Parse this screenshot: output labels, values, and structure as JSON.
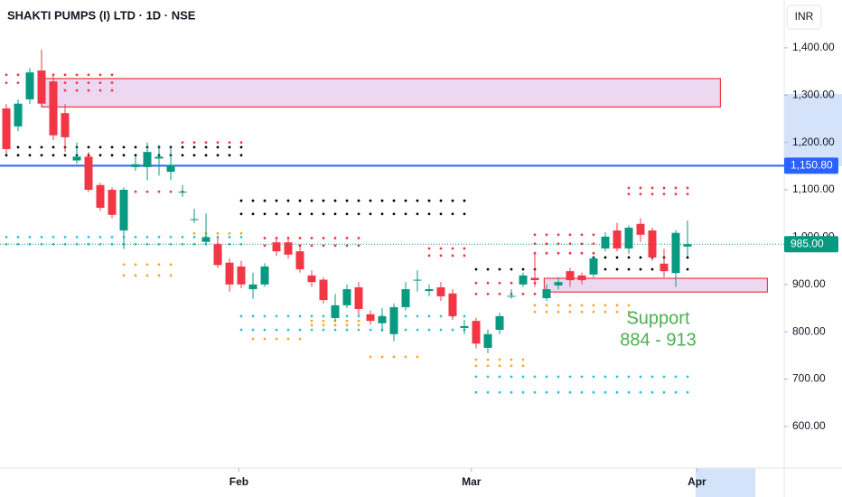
{
  "chart_data": {
    "type": "candlestick",
    "title": "SHAKTI PUMPS (I) LTD · 1D · NSE",
    "currency": "INR",
    "up_color": "#089981",
    "down_color": "#f23645",
    "open": [
      1272,
      1234,
      1291,
      1352,
      1329,
      1262,
      1162,
      1170,
      1110,
      1100,
      1014,
      1148,
      1148,
      1166,
      1138,
      1094,
      1036,
      990,
      985,
      946,
      938,
      890,
      900,
      989,
      989,
      970,
      919,
      910,
      829,
      856,
      894,
      837,
      818,
      795,
      852,
      908,
      886,
      894,
      881,
      808,
      823,
      766,
      804,
      874,
      900,
      914,
      871,
      898,
      928,
      919,
      921,
      976,
      1014,
      976,
      1028,
      1014,
      944,
      924,
      980
    ],
    "high": [
      1281,
      1291,
      1357,
      1396,
      1340,
      1281,
      1200,
      1180,
      1115,
      1105,
      1105,
      1170,
      1200,
      1195,
      1190,
      1110,
      1060,
      1050,
      1000,
      955,
      950,
      925,
      945,
      995,
      995,
      985,
      930,
      915,
      880,
      900,
      905,
      845,
      850,
      860,
      905,
      930,
      900,
      905,
      890,
      825,
      830,
      805,
      840,
      890,
      925,
      965,
      900,
      915,
      935,
      925,
      960,
      1010,
      1030,
      1025,
      1040,
      1020,
      975,
      1015,
      1035
    ],
    "low": [
      1176,
      1224,
      1281,
      1276,
      1205,
      1180,
      1155,
      1095,
      1055,
      1040,
      975,
      1140,
      1120,
      1130,
      1120,
      1085,
      1030,
      985,
      935,
      885,
      892,
      870,
      895,
      960,
      955,
      925,
      895,
      860,
      822,
      850,
      835,
      815,
      800,
      780,
      845,
      885,
      875,
      865,
      825,
      795,
      765,
      755,
      795,
      870,
      895,
      895,
      865,
      890,
      895,
      900,
      915,
      970,
      970,
      965,
      990,
      950,
      915,
      895,
      960
    ],
    "close": [
      1186,
      1282,
      1348,
      1282,
      1215,
      1211,
      1170,
      1100,
      1062,
      1047,
      1100,
      1154,
      1180,
      1170,
      1152,
      1096,
      1038,
      1000,
      941,
      900,
      900,
      900,
      938,
      970,
      963,
      932,
      905,
      867,
      856,
      890,
      848,
      823,
      833,
      852,
      890,
      910,
      890,
      875,
      833,
      812,
      775,
      795,
      833,
      876,
      919,
      909,
      890,
      905,
      909,
      909,
      955,
      1001,
      976,
      1020,
      1005,
      957,
      928,
      1009,
      985
    ],
    "xlim": [
      -0.54,
      66.23
    ],
    "xticks": [
      {
        "value": 19.8,
        "label": "Feb"
      },
      {
        "value": 39.6,
        "label": "Mar"
      },
      {
        "value": 58.8,
        "label": "Apr"
      }
    ],
    "ylim": [
      512,
      1501
    ],
    "yticks": [
      {
        "value": 600,
        "label": "600.00"
      },
      {
        "value": 700,
        "label": "700.00"
      },
      {
        "value": 800,
        "label": "800.00"
      },
      {
        "value": 900,
        "label": "900.00"
      },
      {
        "value": 1000,
        "label": "1,000.00"
      },
      {
        "value": 1100,
        "label": "1,100.00"
      },
      {
        "value": 1200,
        "label": "1,200.00"
      },
      {
        "value": 1300,
        "label": "1,300.00"
      },
      {
        "value": 1400,
        "label": "1,400.00"
      }
    ],
    "hline": {
      "value": 1150.8,
      "label": "1,150.80",
      "color": "#2962ff"
    },
    "last_price": {
      "value": 985,
      "label": "985.00",
      "color": "#089981"
    },
    "zones": [
      {
        "low": 1275,
        "high": 1335,
        "from": 3,
        "to": 60.8
      },
      {
        "low": 884,
        "high": 913,
        "from": 45.8,
        "to": 64.8
      }
    ],
    "annotation": {
      "lines": [
        "Support",
        "884 - 913"
      ],
      "color": "#4caf50"
    },
    "levels": [
      {
        "value": 1343,
        "from": 0,
        "to": 9,
        "color": "#f23645"
      },
      {
        "value": 1326,
        "from": 0,
        "to": 9,
        "color": "#f23645"
      },
      {
        "value": 1310,
        "from": 4,
        "to": 9,
        "color": "#f23645"
      },
      {
        "value": 1200,
        "from": 15,
        "to": 20,
        "color": "#f23645"
      },
      {
        "value": 1190,
        "from": 0,
        "to": 20,
        "color": "#000000"
      },
      {
        "value": 1173,
        "from": 0,
        "to": 20,
        "color": "#000000"
      },
      {
        "value": 1096,
        "from": 11,
        "to": 15,
        "color": "#f23645"
      },
      {
        "value": 1077,
        "from": 20,
        "to": 39,
        "color": "#000000"
      },
      {
        "value": 1049,
        "from": 20,
        "to": 39,
        "color": "#000000"
      },
      {
        "value": 1008,
        "from": 16,
        "to": 20,
        "color": "#f9a825"
      },
      {
        "value": 1000,
        "from": 0,
        "to": 20,
        "color": "#26c6da"
      },
      {
        "value": 985,
        "from": 0,
        "to": 20,
        "color": "#26c6da"
      },
      {
        "value": 942,
        "from": 10,
        "to": 14,
        "color": "#f9a825"
      },
      {
        "value": 919,
        "from": 10,
        "to": 14,
        "color": "#f9a825"
      },
      {
        "value": 998,
        "from": 22,
        "to": 30,
        "color": "#f23645"
      },
      {
        "value": 982,
        "from": 22,
        "to": 30,
        "color": "#f23645"
      },
      {
        "value": 976,
        "from": 36,
        "to": 39,
        "color": "#f23645"
      },
      {
        "value": 961,
        "from": 36,
        "to": 39,
        "color": "#f23645"
      },
      {
        "value": 833,
        "from": 20,
        "to": 39,
        "color": "#26c6da"
      },
      {
        "value": 804,
        "from": 20,
        "to": 39,
        "color": "#26c6da"
      },
      {
        "value": 785,
        "from": 21,
        "to": 25,
        "color": "#f9a825"
      },
      {
        "value": 823,
        "from": 26,
        "to": 30,
        "color": "#f9a825"
      },
      {
        "value": 814,
        "from": 26,
        "to": 30,
        "color": "#f9a825"
      },
      {
        "value": 747,
        "from": 31,
        "to": 35,
        "color": "#f9a825"
      },
      {
        "value": 932,
        "from": 40,
        "to": 45,
        "color": "#000000"
      },
      {
        "value": 903,
        "from": 40,
        "to": 45,
        "color": "#f23645"
      },
      {
        "value": 880,
        "from": 40,
        "to": 45,
        "color": "#f23645"
      },
      {
        "value": 741,
        "from": 40,
        "to": 44,
        "color": "#f9a825"
      },
      {
        "value": 728,
        "from": 40,
        "to": 44,
        "color": "#f9a825"
      },
      {
        "value": 705,
        "from": 40,
        "to": 58,
        "color": "#26c6da"
      },
      {
        "value": 672,
        "from": 40,
        "to": 58,
        "color": "#26c6da"
      },
      {
        "value": 1005,
        "from": 45,
        "to": 50,
        "color": "#f23645"
      },
      {
        "value": 986,
        "from": 45,
        "to": 50,
        "color": "#f23645"
      },
      {
        "value": 966,
        "from": 45,
        "to": 50,
        "color": "#f23645"
      },
      {
        "value": 957,
        "from": 50,
        "to": 58,
        "color": "#000000"
      },
      {
        "value": 932,
        "from": 50,
        "to": 58,
        "color": "#000000"
      },
      {
        "value": 1104,
        "from": 53,
        "to": 58,
        "color": "#f23645"
      },
      {
        "value": 1091,
        "from": 53,
        "to": 58,
        "color": "#f23645"
      },
      {
        "value": 856,
        "from": 45,
        "to": 53,
        "color": "#f9a825"
      },
      {
        "value": 842,
        "from": 45,
        "to": 53,
        "color": "#f9a825"
      }
    ]
  }
}
